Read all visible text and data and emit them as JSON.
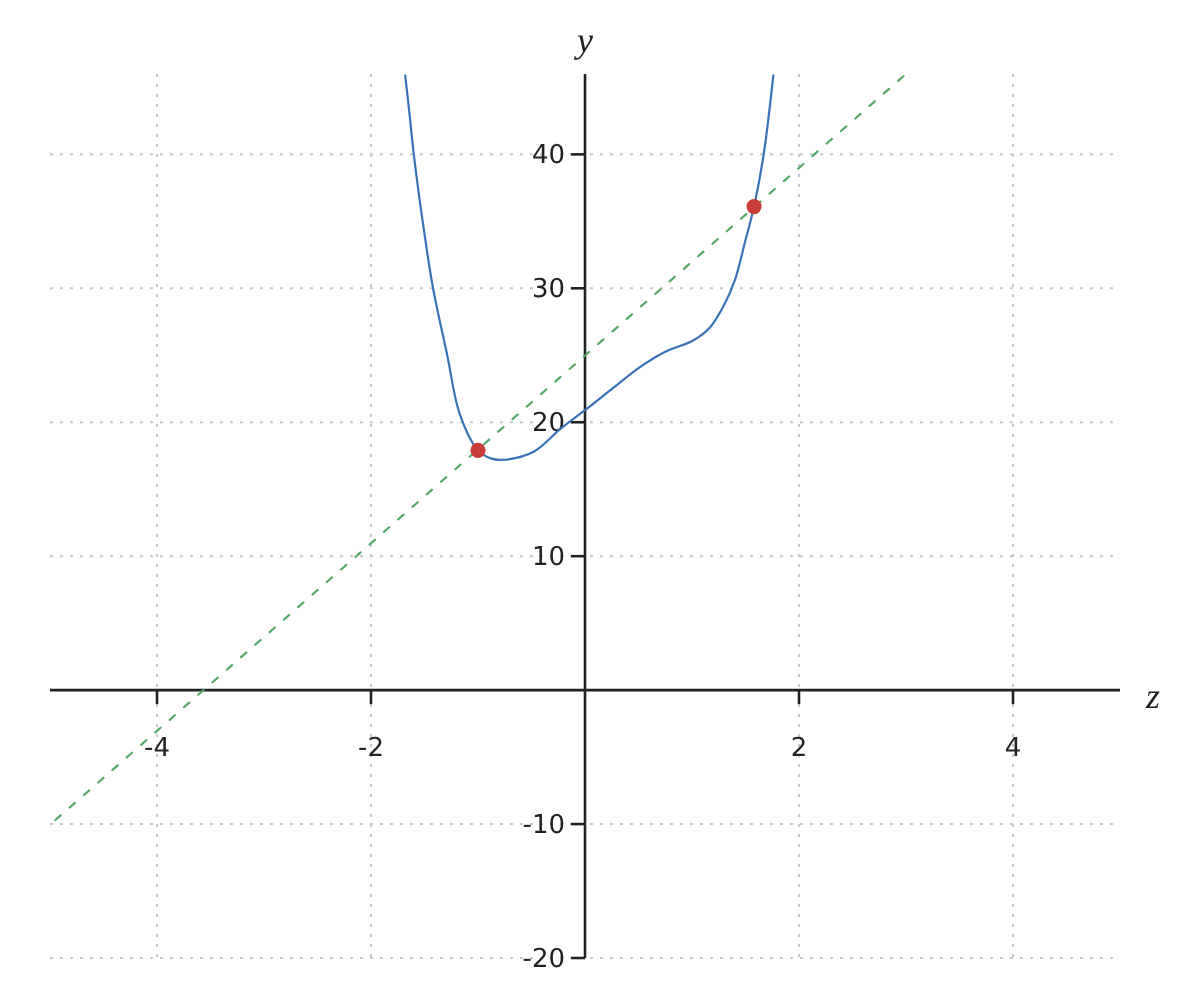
{
  "chart_data": {
    "type": "line",
    "xlabel": "z",
    "ylabel": "y",
    "xlim": [
      -5,
      5
    ],
    "ylim": [
      -20,
      46
    ],
    "xticks": [
      -4,
      -2,
      2,
      4
    ],
    "yticks": [
      -20,
      -10,
      10,
      20,
      30,
      40
    ],
    "grid": true,
    "series": [
      {
        "color": "#3a72b8",
        "line_style": "solid",
        "x": [
          -1.68,
          -1.64,
          -1.6,
          -1.51,
          -1.42,
          -1.29,
          -1.17,
          -1.0,
          -0.88,
          -0.76,
          -0.48,
          -0.23,
          0,
          0.27,
          0.51,
          0.76,
          1.01,
          1.17,
          1.29,
          1.4,
          1.5,
          1.58,
          1.67,
          1.76
        ],
        "values": [
          45.9,
          43.0,
          40.0,
          34.6,
          30.0,
          25.1,
          20.6,
          17.9,
          17.3,
          17.2,
          17.8,
          19.5,
          20.9,
          22.6,
          24.1,
          25.3,
          26.1,
          27.1,
          28.6,
          30.6,
          33.6,
          36.1,
          40.0,
          45.9
        ]
      },
      {
        "color": "#55a868",
        "line_style": "dashed",
        "x": [
          -4.95,
          3.0
        ],
        "values": [
          -9.7,
          46
        ]
      },
      {
        "type": "scatter",
        "color": "#c93c37",
        "marker": "circle",
        "x": [
          -1.0,
          1.58
        ],
        "values": [
          17.9,
          36.1
        ]
      }
    ]
  }
}
